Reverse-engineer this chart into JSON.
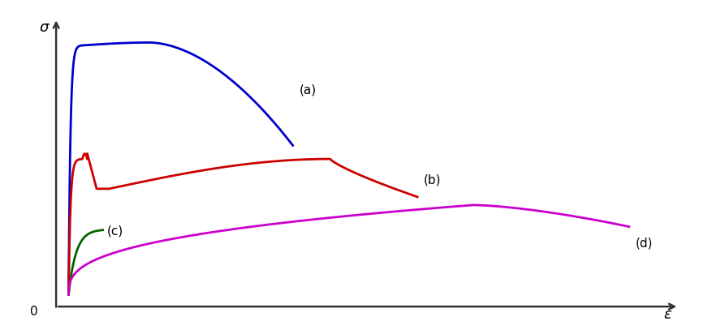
{
  "background_color": "#ffffff",
  "xlabel": "ε",
  "ylabel": "σ",
  "label_a": "(a)",
  "label_b": "(b)",
  "label_c": "(c)",
  "label_d": "(d)",
  "color_a": "#0000cc",
  "color_b": "#cc0000",
  "color_c": "#006600",
  "color_d": "#cc00cc",
  "linewidth": 2.0,
  "figsize": [
    8.78,
    4.12
  ],
  "dpi": 100
}
